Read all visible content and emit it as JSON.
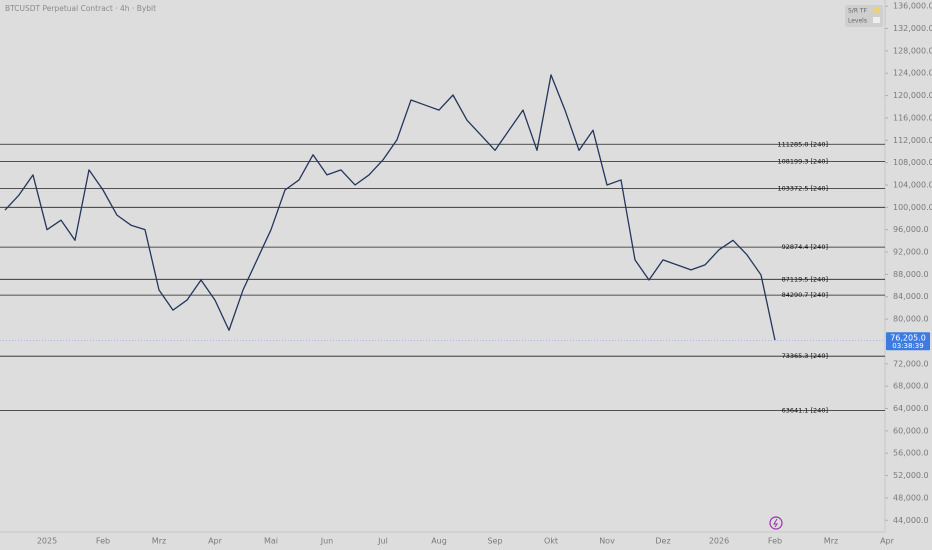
{
  "chart_data": {
    "type": "line",
    "title": "BTCUSDT Perpetual Contract · 4h · Bybit",
    "categories": [
      null,
      null,
      null,
      "2025",
      null,
      null,
      null,
      "Feb",
      null,
      null,
      null,
      "Mrz",
      null,
      null,
      null,
      "Apr",
      null,
      null,
      null,
      "Mai",
      null,
      null,
      null,
      "Jun",
      null,
      null,
      null,
      "Jul",
      null,
      null,
      null,
      "Aug",
      null,
      null,
      null,
      "Sep",
      null,
      null,
      null,
      "Okt",
      null,
      null,
      null,
      "Nov",
      null,
      null,
      null,
      "Dez",
      null,
      null,
      null,
      "2026",
      null,
      null,
      null,
      "Feb",
      null,
      null,
      null,
      "Mrz",
      null,
      null,
      null,
      "Apr"
    ],
    "values": [
      99500,
      102200,
      105800,
      96000,
      97700,
      94100,
      106700,
      103100,
      98600,
      96800,
      96000,
      85200,
      81600,
      83400,
      87000,
      83400,
      78000,
      85200,
      90600,
      96000,
      103100,
      104900,
      109400,
      105800,
      106700,
      104000,
      105800,
      108500,
      112100,
      119200,
      118300,
      117400,
      120100,
      115600,
      112900,
      110200,
      113800,
      117400,
      110200,
      123700,
      117400,
      110200,
      113800,
      104000,
      104900,
      90600,
      87000,
      90600,
      89700,
      88800,
      89700,
      92400,
      94100,
      91500,
      87900,
      76205,
      null,
      null,
      null,
      null,
      null,
      null,
      null,
      null
    ],
    "color": "#24365c",
    "ylim": [
      41900,
      137100
    ],
    "yticks": [
      {
        "value": 44000,
        "label": "44,000.0"
      },
      {
        "value": 48000,
        "label": "48,000.0"
      },
      {
        "value": 52000,
        "label": "52,000.0"
      },
      {
        "value": 56000,
        "label": "56,000.0"
      },
      {
        "value": 60000,
        "label": "60,000.0"
      },
      {
        "value": 64000,
        "label": "64,000.0"
      },
      {
        "value": 68000,
        "label": "68,000.0"
      },
      {
        "value": 72000,
        "label": "72,000.0"
      },
      {
        "value": 80000,
        "label": "80,000.0"
      },
      {
        "value": 84000,
        "label": "84,000.0"
      },
      {
        "value": 88000,
        "label": "88,000.0"
      },
      {
        "value": 92000,
        "label": "92,000.0"
      },
      {
        "value": 96000,
        "label": "96,000.0"
      },
      {
        "value": 100000,
        "label": "100,000.0"
      },
      {
        "value": 104000,
        "label": "104,000.0"
      },
      {
        "value": 108000,
        "label": "108,000.0"
      },
      {
        "value": 112000,
        "label": "112,000.0"
      },
      {
        "value": 116000,
        "label": "116,000.0"
      },
      {
        "value": 120000,
        "label": "120,000.0"
      },
      {
        "value": 124000,
        "label": "124,000.0"
      },
      {
        "value": 128000,
        "label": "128,000.0"
      },
      {
        "value": 132000,
        "label": "132,000.0"
      },
      {
        "value": 136000,
        "label": "136,000.0"
      }
    ],
    "levels": [
      {
        "value": 111285,
        "label": "111285.0 [240]"
      },
      {
        "value": 108199.3,
        "label": "108199.3 [240]"
      },
      {
        "value": 103372.5,
        "label": "103372.5 [240]"
      },
      {
        "value": 100000
      },
      {
        "value": 92874.4,
        "label": "92874.4 [240]"
      },
      {
        "value": 87119.5,
        "label": "87119.5 [240]"
      },
      {
        "value": 84290.7,
        "label": "84290.7 [240]"
      },
      {
        "value": 73365.3,
        "label": "73365.3 [240]"
      },
      {
        "value": 63641.1,
        "label": "63641.1 [240]"
      }
    ],
    "last_price": {
      "value": 76205,
      "label": "76,205.0"
    },
    "countdown": "03:38:39",
    "legend_items": [
      "S/R TF",
      "Levels"
    ]
  }
}
